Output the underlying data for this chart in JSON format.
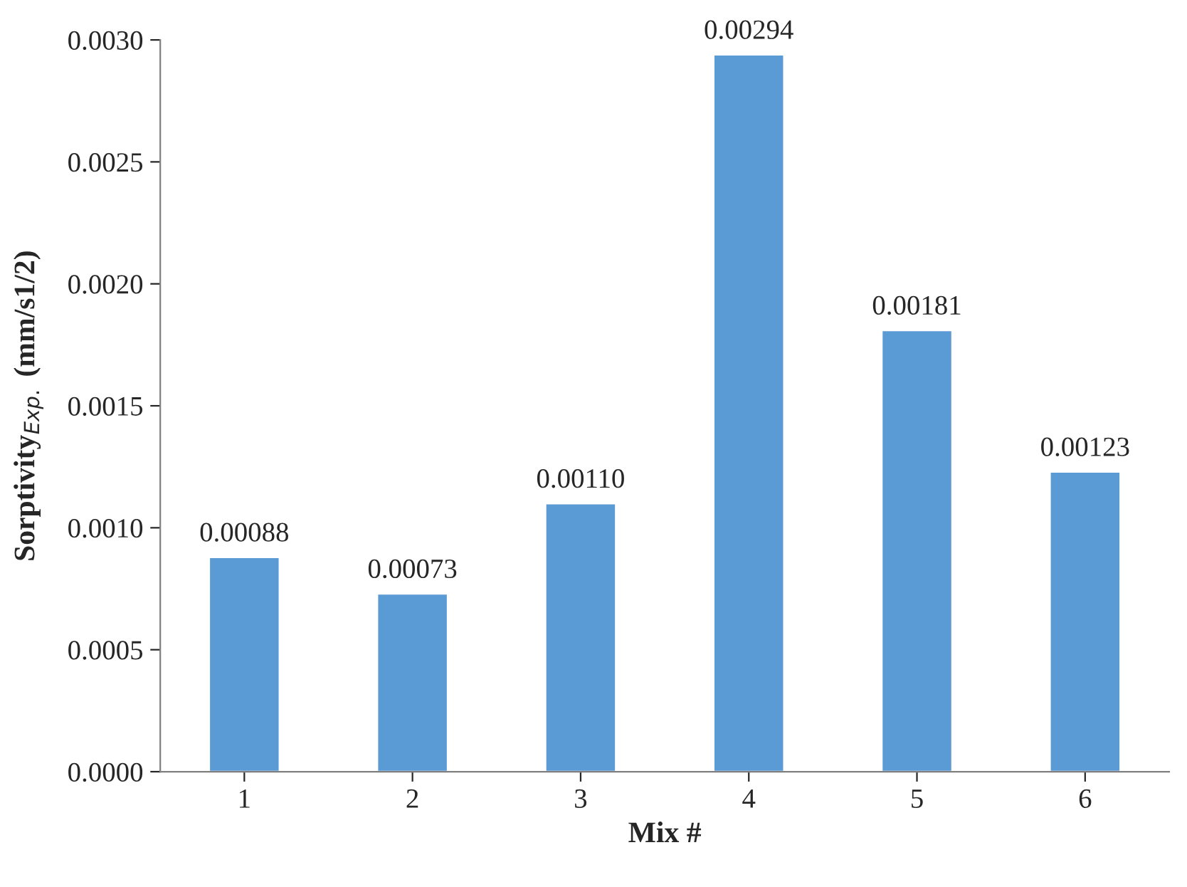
{
  "chart_data": {
    "type": "bar",
    "xlabel": "Mix #",
    "ylabel": "Sorptivity$_{Exp.}$ (mm/s1/2)",
    "categories": [
      "1",
      "2",
      "3",
      "4",
      "5",
      "6"
    ],
    "values": [
      0.00088,
      0.00073,
      0.0011,
      0.00294,
      0.00181,
      0.00123
    ],
    "value_labels": [
      "0.00088",
      "0.00073",
      "0.00110",
      "0.00294",
      "0.00181",
      "0.00123"
    ],
    "color": "#5b9bd5",
    "ylim": [
      0,
      0.003
    ],
    "yticks": [
      {
        "value": 0,
        "label": "0.0000"
      },
      {
        "value": 0.0005,
        "label": "0.0005"
      },
      {
        "value": 0.001,
        "label": "0.0010"
      },
      {
        "value": 0.0015,
        "label": "0.0015"
      },
      {
        "value": 0.002,
        "label": "0.0020"
      },
      {
        "value": 0.0025,
        "label": "0.0025"
      },
      {
        "value": 0.003,
        "label": "0.0030"
      }
    ],
    "grid": false
  }
}
